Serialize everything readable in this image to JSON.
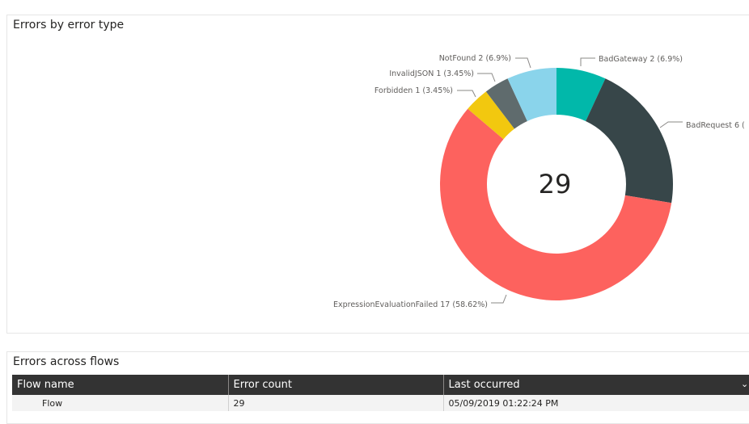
{
  "donut_visual": {
    "title": "Errors by error type",
    "center_total": "29"
  },
  "chart_data": {
    "type": "pie",
    "title": "Errors by error type",
    "total": 29,
    "slices": [
      {
        "name": "BadGateway",
        "value": 2,
        "percent": "6.9%",
        "label": "BadGateway 2 (6.9%)",
        "color": "#01b8aa"
      },
      {
        "name": "BadRequest",
        "value": 6,
        "percent": "20.69%",
        "label": "BadRequest 6 (",
        "color": "#374649"
      },
      {
        "name": "ExpressionEvaluationFailed",
        "value": 17,
        "percent": "58.62%",
        "label": "ExpressionEvaluationFailed 17 (58.62%)",
        "color": "#fd625e"
      },
      {
        "name": "Forbidden",
        "value": 1,
        "percent": "3.45%",
        "label": "Forbidden 1 (3.45%)",
        "color": "#f2c80f"
      },
      {
        "name": "InvalidJSON",
        "value": 1,
        "percent": "3.45%",
        "label": "InvalidJSON 1 (3.45%)",
        "color": "#5f6b6d"
      },
      {
        "name": "NotFound",
        "value": 2,
        "percent": "6.9%",
        "label": "NotFound 2 (6.9%)",
        "color": "#8ad4eb"
      }
    ]
  },
  "table_visual": {
    "title": "Errors across flows",
    "columns": [
      "Flow name",
      "Error count",
      "Last occurred"
    ],
    "rows": [
      [
        "Flow",
        "29",
        "05/09/2019 01:22:24 PM"
      ]
    ],
    "sort_icon": "chevron-down-icon"
  }
}
